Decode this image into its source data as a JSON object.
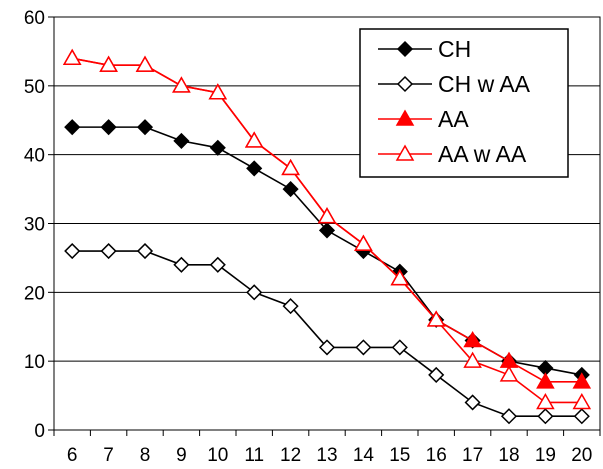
{
  "chart_data": {
    "type": "line",
    "x": [
      6,
      7,
      8,
      9,
      10,
      11,
      12,
      13,
      14,
      15,
      16,
      17,
      18,
      19,
      20
    ],
    "ylim": [
      0,
      60
    ],
    "y_ticks": [
      0,
      10,
      20,
      30,
      40,
      50,
      60
    ],
    "grid": "horizontal",
    "legend_position": "top-right",
    "series": [
      {
        "name": "CH",
        "color": "#000000",
        "marker": "diamond-filled",
        "values": [
          44,
          44,
          44,
          42,
          41,
          38,
          35,
          29,
          26,
          23,
          16,
          13,
          10,
          9,
          8
        ]
      },
      {
        "name": "CH w AA",
        "color": "#000000",
        "marker": "diamond-open",
        "values": [
          26,
          26,
          26,
          24,
          24,
          20,
          18,
          12,
          12,
          12,
          8,
          4,
          2,
          2,
          2
        ]
      },
      {
        "name": "AA",
        "color": "#ff0000",
        "marker": "triangle-filled",
        "values": [
          54,
          53,
          53,
          50,
          49,
          42,
          38,
          31,
          27,
          22,
          16,
          13,
          10,
          7,
          7
        ]
      },
      {
        "name": "AA w AA",
        "color": "#ff0000",
        "marker": "triangle-open",
        "values": [
          54,
          53,
          53,
          50,
          49,
          42,
          38,
          31,
          27,
          22,
          16,
          10,
          8,
          4,
          4
        ]
      }
    ]
  }
}
